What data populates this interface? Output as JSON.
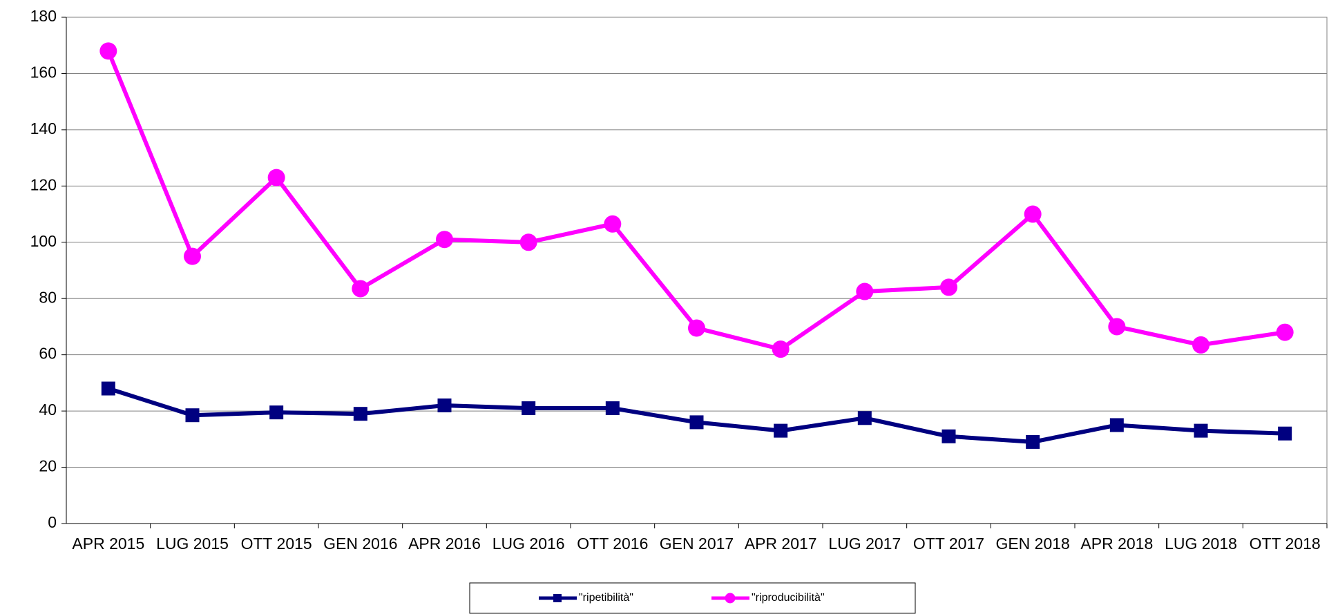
{
  "chart_data": {
    "type": "line",
    "categories": [
      "APR 2015",
      "LUG 2015",
      "OTT 2015",
      "GEN 2016",
      "APR 2016",
      "LUG 2016",
      "OTT 2016",
      "GEN 2017",
      "APR 2017",
      "LUG 2017",
      "OTT 2017",
      "GEN 2018",
      "APR 2018",
      "LUG 2018",
      "OTT 2018"
    ],
    "series": [
      {
        "name": "\"ripetibilità\"",
        "color": "#000080",
        "marker": "square",
        "values": [
          48,
          38.5,
          39.5,
          39,
          42,
          41,
          41,
          36,
          33,
          37.5,
          31,
          29,
          35,
          33,
          32
        ]
      },
      {
        "name": "\"riproducibilità\"",
        "color": "#ff00ff",
        "marker": "circle",
        "values": [
          168,
          95,
          123,
          83.5,
          101,
          100,
          106.5,
          69.5,
          62,
          82.5,
          84,
          110,
          70,
          63.5,
          68
        ]
      }
    ],
    "ylim": [
      0,
      180
    ],
    "yticks": [
      0,
      20,
      40,
      60,
      80,
      100,
      120,
      140,
      160,
      180
    ],
    "grid": true,
    "legend": "bottom"
  }
}
